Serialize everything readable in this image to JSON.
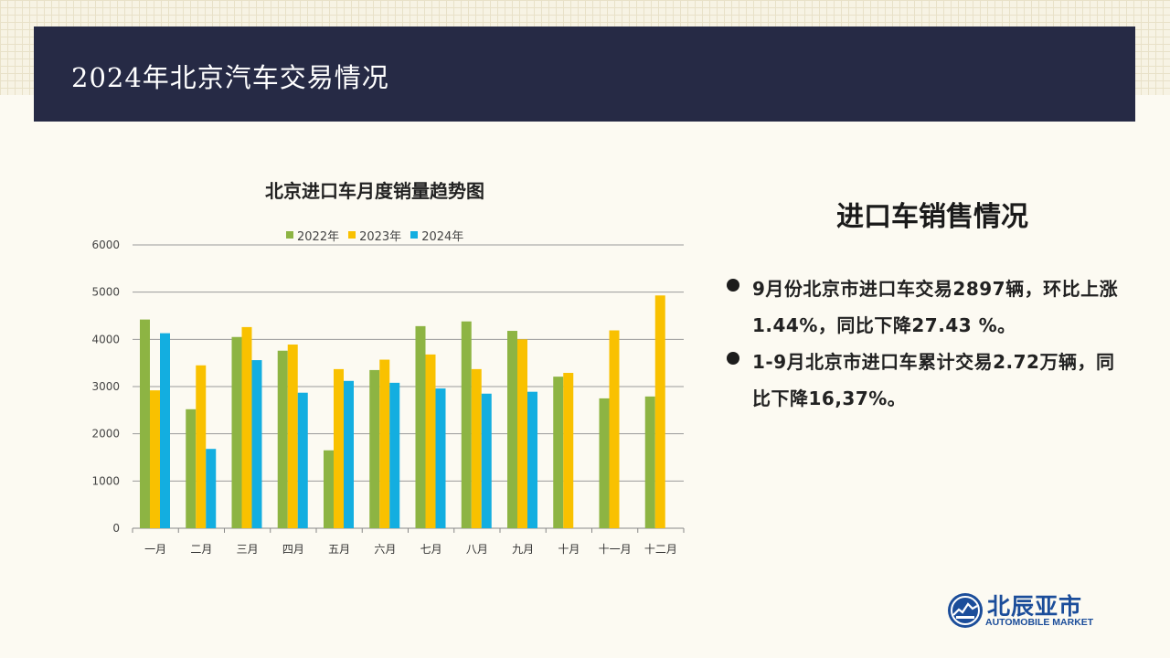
{
  "page": {
    "title": "2024年北京汽车交易情况"
  },
  "side_panel": {
    "heading": "进口车销售情况",
    "bullets": [
      "9月份北京市进口车交易2897辆，环比上涨1.44%，同比下降27.43 %。",
      "1-9月北京市进口车累计交易2.72万辆，同比下降16,37%。"
    ]
  },
  "logo": {
    "name": "北辰亚市",
    "subtitle": "AUTOMOBILE MARKET"
  },
  "colors": {
    "header_bg": "#262a45",
    "series_2022": "#8db443",
    "series_2023": "#f9c100",
    "series_2024": "#13aee0",
    "logo_blue": "#1b4d9a"
  },
  "chart_data": {
    "type": "bar",
    "title": "北京进口车月度销量趋势图",
    "categories": [
      "一月",
      "二月",
      "三月",
      "四月",
      "五月",
      "六月",
      "七月",
      "八月",
      "九月",
      "十月",
      "十一月",
      "十二月"
    ],
    "series": [
      {
        "name": "2022年",
        "color": "#8db443",
        "values": [
          4420,
          2520,
          4050,
          3760,
          1650,
          3350,
          4280,
          4380,
          4180,
          3210,
          2750,
          2790
        ]
      },
      {
        "name": "2023年",
        "color": "#f9c100",
        "values": [
          2920,
          3450,
          4260,
          3890,
          3370,
          3570,
          3680,
          3370,
          4000,
          3290,
          4190,
          4930
        ]
      },
      {
        "name": "2024年",
        "color": "#13aee0",
        "values": [
          4130,
          1680,
          3560,
          2870,
          3120,
          3080,
          2960,
          2850,
          2890,
          null,
          null,
          null
        ]
      }
    ],
    "ylim": [
      0,
      6000
    ],
    "yticks": [
      0,
      1000,
      2000,
      3000,
      4000,
      5000,
      6000
    ],
    "grid": true,
    "legend_position": "top"
  }
}
